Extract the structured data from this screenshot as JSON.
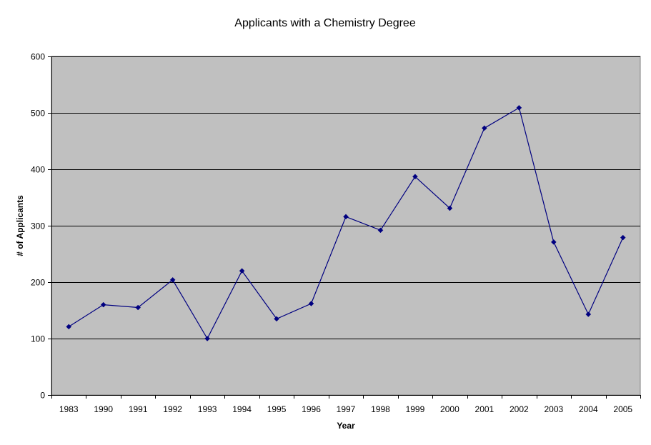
{
  "chart_data": {
    "type": "line",
    "title": "Applicants with a Chemistry Degree",
    "xlabel": "Year",
    "ylabel": "# of Applicants",
    "categories": [
      "1983",
      "1990",
      "1991",
      "1992",
      "1993",
      "1994",
      "1995",
      "1996",
      "1997",
      "1998",
      "1999",
      "2000",
      "2001",
      "2002",
      "2003",
      "2004",
      "2005"
    ],
    "series": [
      {
        "values": [
          121,
          160,
          155,
          204,
          100,
          220,
          135,
          162,
          316,
          292,
          387,
          331,
          473,
          509,
          271,
          143,
          279
        ]
      }
    ],
    "ylim": [
      0,
      600
    ],
    "yticks": [
      "0",
      "100",
      "200",
      "300",
      "400",
      "500",
      "600"
    ],
    "grid": true,
    "legend": "none",
    "colors": {
      "plot_background": "#c0c0c0",
      "series_line": "#000080",
      "gridline": "#000000"
    }
  }
}
